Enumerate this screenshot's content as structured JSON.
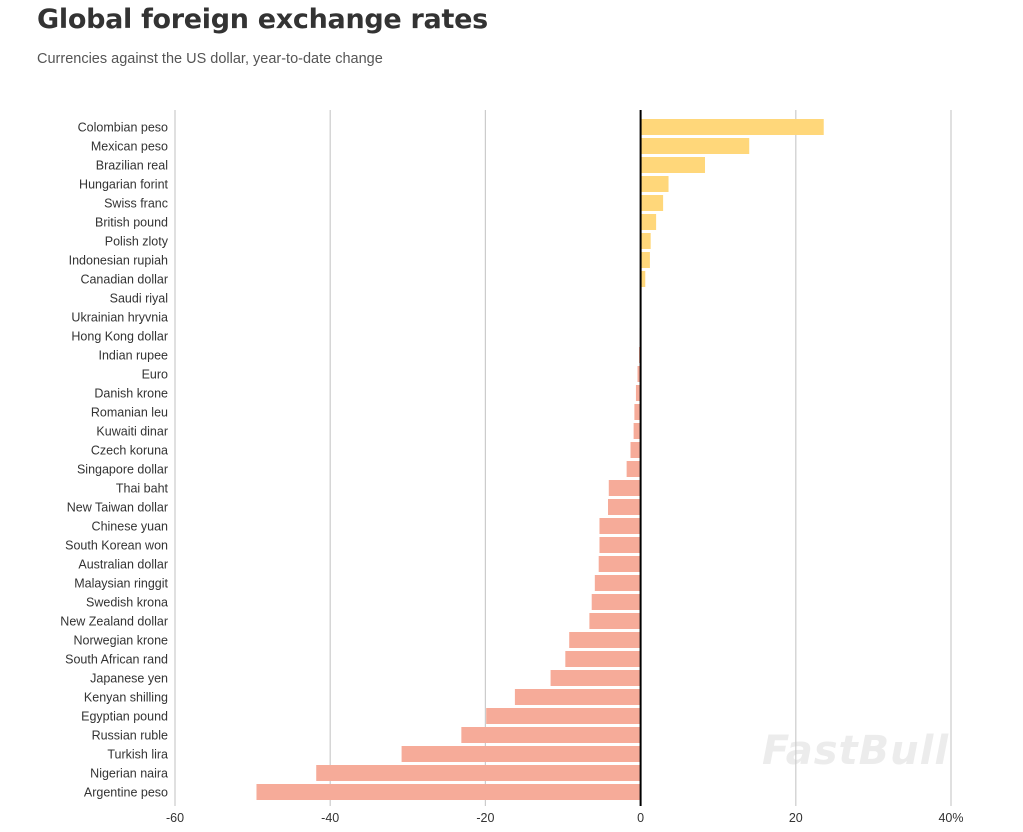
{
  "title": "Global foreign exchange rates",
  "subtitle": "Currencies against the US dollar, year-to-date change",
  "watermark": "FastBull",
  "colors": {
    "positive": "#ffd77a",
    "negative": "#f6ab99",
    "zero_line": "#000000",
    "grid": "#cccccc"
  },
  "chart_data": {
    "type": "bar",
    "orientation": "horizontal",
    "title": "Global foreign exchange rates",
    "subtitle": "Currencies against the US dollar, year-to-date change",
    "xlabel": "",
    "ylabel": "",
    "xlim": [
      -60,
      40
    ],
    "x_ticks": [
      -60,
      -40,
      -20,
      0,
      20,
      40
    ],
    "x_tick_labels": [
      "-60",
      "-40",
      "-20",
      "0",
      "20",
      "40%"
    ],
    "grid": true,
    "categories": [
      "Colombian peso",
      "Mexican peso",
      "Brazilian real",
      "Hungarian forint",
      "Swiss franc",
      "British pound",
      "Polish zloty",
      "Indonesian rupiah",
      "Canadian dollar",
      "Saudi riyal",
      "Ukrainian hryvnia",
      "Hong Kong dollar",
      "Indian rupee",
      "Euro",
      "Danish krone",
      "Romanian leu",
      "Kuwaiti dinar",
      "Czech koruna",
      "Singapore dollar",
      "Thai baht",
      "New Taiwan dollar",
      "Chinese yuan",
      "South Korean won",
      "Australian dollar",
      "Malaysian ringgit",
      "Swedish krona",
      "New Zealand dollar",
      "Norwegian krone",
      "South African rand",
      "Japanese yen",
      "Kenyan shilling",
      "Egyptian pound",
      "Russian ruble",
      "Turkish lira",
      "Nigerian naira",
      "Argentine peso"
    ],
    "values": [
      23.6,
      14.0,
      8.3,
      3.6,
      2.9,
      2.0,
      1.3,
      1.2,
      0.6,
      0.0,
      0.0,
      -0.1,
      -0.2,
      -0.4,
      -0.6,
      -0.8,
      -0.9,
      -1.3,
      -1.8,
      -4.1,
      -4.2,
      -5.3,
      -5.3,
      -5.4,
      -5.9,
      -6.3,
      -6.6,
      -9.2,
      -9.7,
      -11.6,
      -16.2,
      -19.9,
      -23.1,
      -30.8,
      -41.8,
      -49.5
    ]
  }
}
